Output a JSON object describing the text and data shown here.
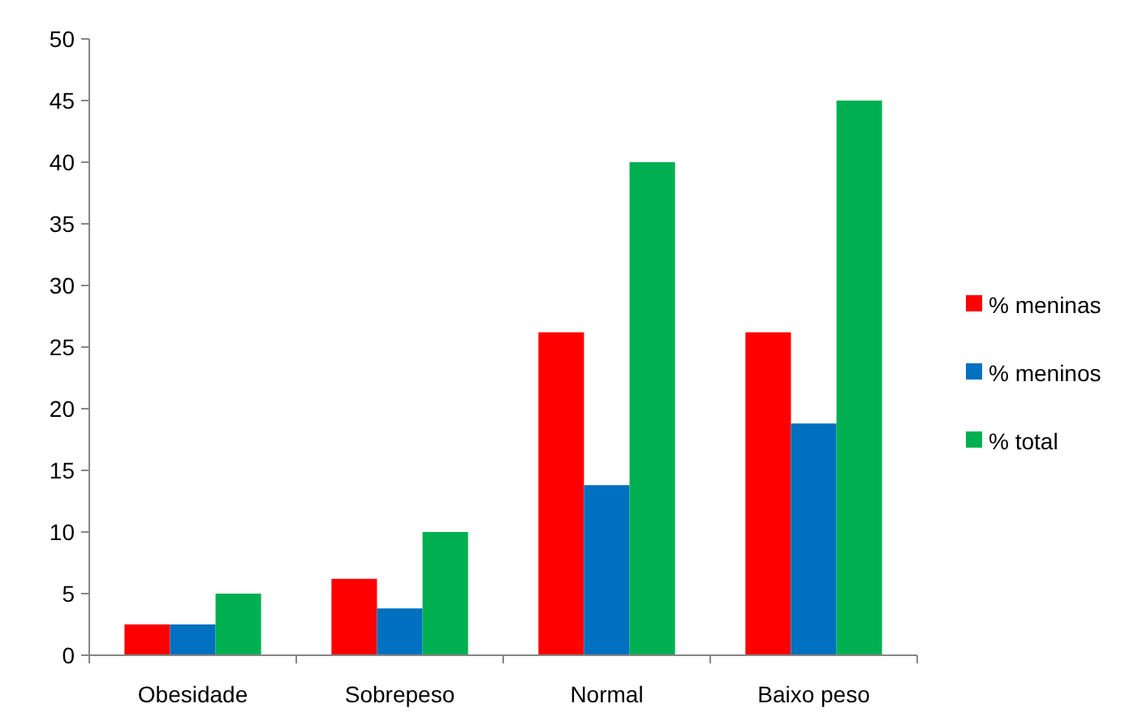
{
  "chart_data": {
    "type": "bar",
    "categories": [
      "Obesidade",
      "Sobrepeso",
      "Normal",
      "Baixo peso"
    ],
    "series": [
      {
        "name": "% meninas",
        "color": "#ff0000",
        "values": [
          2.5,
          6.2,
          26.2,
          26.2
        ]
      },
      {
        "name": "% meninos",
        "color": "#0070c0",
        "values": [
          2.5,
          3.8,
          13.8,
          18.8
        ]
      },
      {
        "name": "% total",
        "color": "#00b050",
        "values": [
          5,
          10,
          40,
          45
        ]
      }
    ],
    "ylim": [
      0,
      50
    ],
    "yticks": [
      0,
      5,
      10,
      15,
      20,
      25,
      30,
      35,
      40,
      45,
      50
    ],
    "grid": false,
    "legend": "right"
  }
}
